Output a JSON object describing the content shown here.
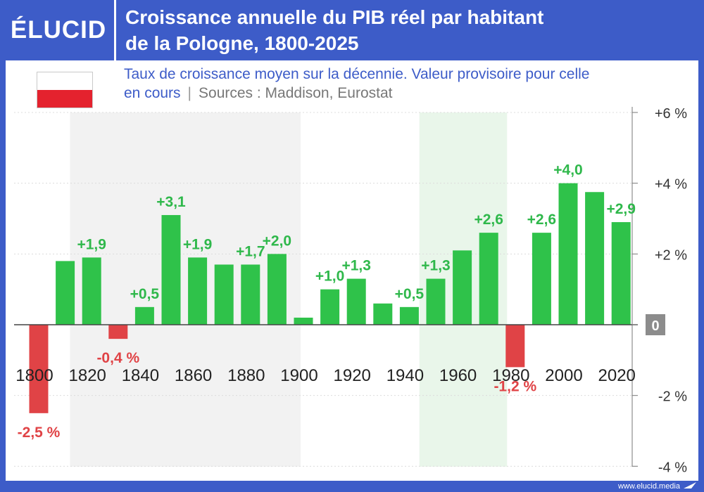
{
  "header": {
    "logo": "ÉLUCID",
    "title_line1": "Croissance annuelle du PIB réel par habitant",
    "title_line2": "de la Pologne, 1800-2025"
  },
  "subtitle": {
    "line1": "Taux de croissance moyen sur la décennie. Valeur provisoire pour celle",
    "line2_main": "en cours",
    "separator": "|",
    "sources": "Sources : Maddison, Eurostat"
  },
  "footer": {
    "url": "www.elucid.media"
  },
  "colors": {
    "positive": "#2fc24a",
    "negative": "#e04346",
    "brand": "#3d5cc8"
  },
  "chart_data": {
    "type": "bar",
    "title": "Croissance annuelle du PIB réel par habitant de la Pologne, 1800-2025",
    "xlabel": "",
    "ylabel": "",
    "ylim": [
      -4,
      6
    ],
    "y_ticks": [
      {
        "value": 6,
        "label": "+6 %"
      },
      {
        "value": 4,
        "label": "+4 %"
      },
      {
        "value": 2,
        "label": "+2 %"
      },
      {
        "value": 0,
        "label": "0"
      },
      {
        "value": -2,
        "label": "-2 %"
      },
      {
        "value": -4,
        "label": "-4 %"
      }
    ],
    "x_tick_labels": [
      "1800",
      "1820",
      "1840",
      "1860",
      "1880",
      "1900",
      "1920",
      "1940",
      "1960",
      "1980",
      "2000",
      "2020"
    ],
    "shaded_periods": [
      {
        "from": 1815,
        "to": 1900,
        "color": "#f2f2f2"
      },
      {
        "from": 1947,
        "to": 1978,
        "color": "#e9f6ea"
      }
    ],
    "categories": [
      "1800",
      "1810",
      "1820",
      "1830",
      "1840",
      "1850",
      "1860",
      "1870",
      "1880",
      "1890",
      "1900",
      "1910",
      "1920",
      "1930",
      "1940",
      "1950",
      "1960",
      "1970",
      "1980",
      "1990",
      "2000",
      "2010",
      "2020"
    ],
    "values": [
      -2.5,
      1.8,
      1.9,
      -0.4,
      0.5,
      3.1,
      1.9,
      1.7,
      1.7,
      2.0,
      0.2,
      1.0,
      1.3,
      0.6,
      0.5,
      1.3,
      2.1,
      2.6,
      -1.2,
      2.6,
      4.0,
      3.75,
      2.9
    ],
    "data_labels": [
      "-2,5 %",
      "",
      "+1,9",
      "-0,4 %",
      "+0,5",
      "+3,1",
      "+1,9",
      "",
      "+1,7",
      "+2,0",
      "",
      "+1,0",
      "+1,3",
      "",
      "+0,5",
      "+1,3",
      "",
      "+2,6",
      "-1,2 %",
      "+2,6",
      "+4,0",
      "",
      "+2,9"
    ]
  }
}
